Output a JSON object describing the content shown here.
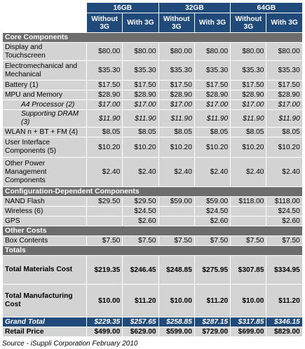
{
  "storage_headers": [
    "16GB",
    "32GB",
    "64GB"
  ],
  "variant_headers": [
    "Without 3G",
    "With 3G",
    "Without 3G",
    "With 3G",
    "Without 3G",
    "With 3G"
  ],
  "sections": {
    "core": "Core Components",
    "config": "Configuration-Dependent Components",
    "other": "Other Costs",
    "totals": "Totals"
  },
  "core_rows": [
    {
      "label": "Display and Touchscreen",
      "values": [
        "$80.00",
        "$80.00",
        "$80.00",
        "$80.00",
        "$80.00",
        "$80.00"
      ]
    },
    {
      "label": "Electromechanical and Mechanical",
      "values": [
        "$35.30",
        "$35.30",
        "$35.30",
        "$35.30",
        "$35.30",
        "$35.30"
      ]
    },
    {
      "label": "Battery (1)",
      "values": [
        "$17.50",
        "$17.50",
        "$17.50",
        "$17.50",
        "$17.50",
        "$17.50"
      ]
    },
    {
      "label": "MPU and Memory",
      "values": [
        "$28.90",
        "$28.90",
        "$28.90",
        "$28.90",
        "$28.90",
        "$28.90"
      ]
    },
    {
      "label": "A4 Processor (2)",
      "values": [
        "$17.00",
        "$17.00",
        "$17.00",
        "$17.00",
        "$17.00",
        "$17.00"
      ]
    },
    {
      "label": "Supporting DRAM (3)",
      "values": [
        "$11.90",
        "$11.90",
        "$11.90",
        "$11.90",
        "$11.90",
        "$11.90"
      ]
    },
    {
      "label": "WLAN n + BT + FM (4)",
      "values": [
        "$8.05",
        "$8.05",
        "$8.05",
        "$8.05",
        "$8.05",
        "$8.05"
      ]
    },
    {
      "label": "User Interface Components (5)",
      "values": [
        "$10.20",
        "$10.20",
        "$10.20",
        "$10.20",
        "$10.20",
        "$10.20"
      ]
    },
    {
      "label": "Other Power Management Components",
      "values": [
        "$2.40",
        "$2.40",
        "$2.40",
        "$2.40",
        "$2.40",
        "$2.40"
      ]
    }
  ],
  "config_rows": [
    {
      "label": "NAND Flash",
      "values": [
        "$29.50",
        "$29.50",
        "$59.00",
        "$59.00",
        "$118.00",
        "$118.00"
      ]
    },
    {
      "label": "Wireless (6)",
      "values": [
        "",
        "$24.50",
        "",
        "$24.50",
        "",
        "$24.50"
      ]
    },
    {
      "label": "GPS",
      "values": [
        "",
        "$2.60",
        "",
        "$2.60",
        "",
        "$2.60"
      ]
    }
  ],
  "other_rows": [
    {
      "label": "Box Contents",
      "values": [
        "$7.50",
        "$7.50",
        "$7.50",
        "$7.50",
        "$7.50",
        "$7.50"
      ]
    }
  ],
  "total_rows": [
    {
      "label": "Total Materials Cost",
      "values": [
        "$219.35",
        "$246.45",
        "$248.85",
        "$275.95",
        "$307.85",
        "$334.95"
      ]
    },
    {
      "label": "Total Manufacturing Cost",
      "values": [
        "$10.00",
        "$11.20",
        "$10.00",
        "$11.20",
        "$10.00",
        "$11.20"
      ]
    }
  ],
  "grand_total": {
    "label": "Grand Total",
    "values": [
      "$229.35",
      "$257.65",
      "$258.85",
      "$287.15",
      "$317.85",
      "$346.15"
    ]
  },
  "retail_price": {
    "label": "Retail Price",
    "values": [
      "$499.00",
      "$629.00",
      "$599.00",
      "$729.00",
      "$699.00",
      "$829.00"
    ]
  },
  "source": "Source - iSuppli Corporation February 2010"
}
